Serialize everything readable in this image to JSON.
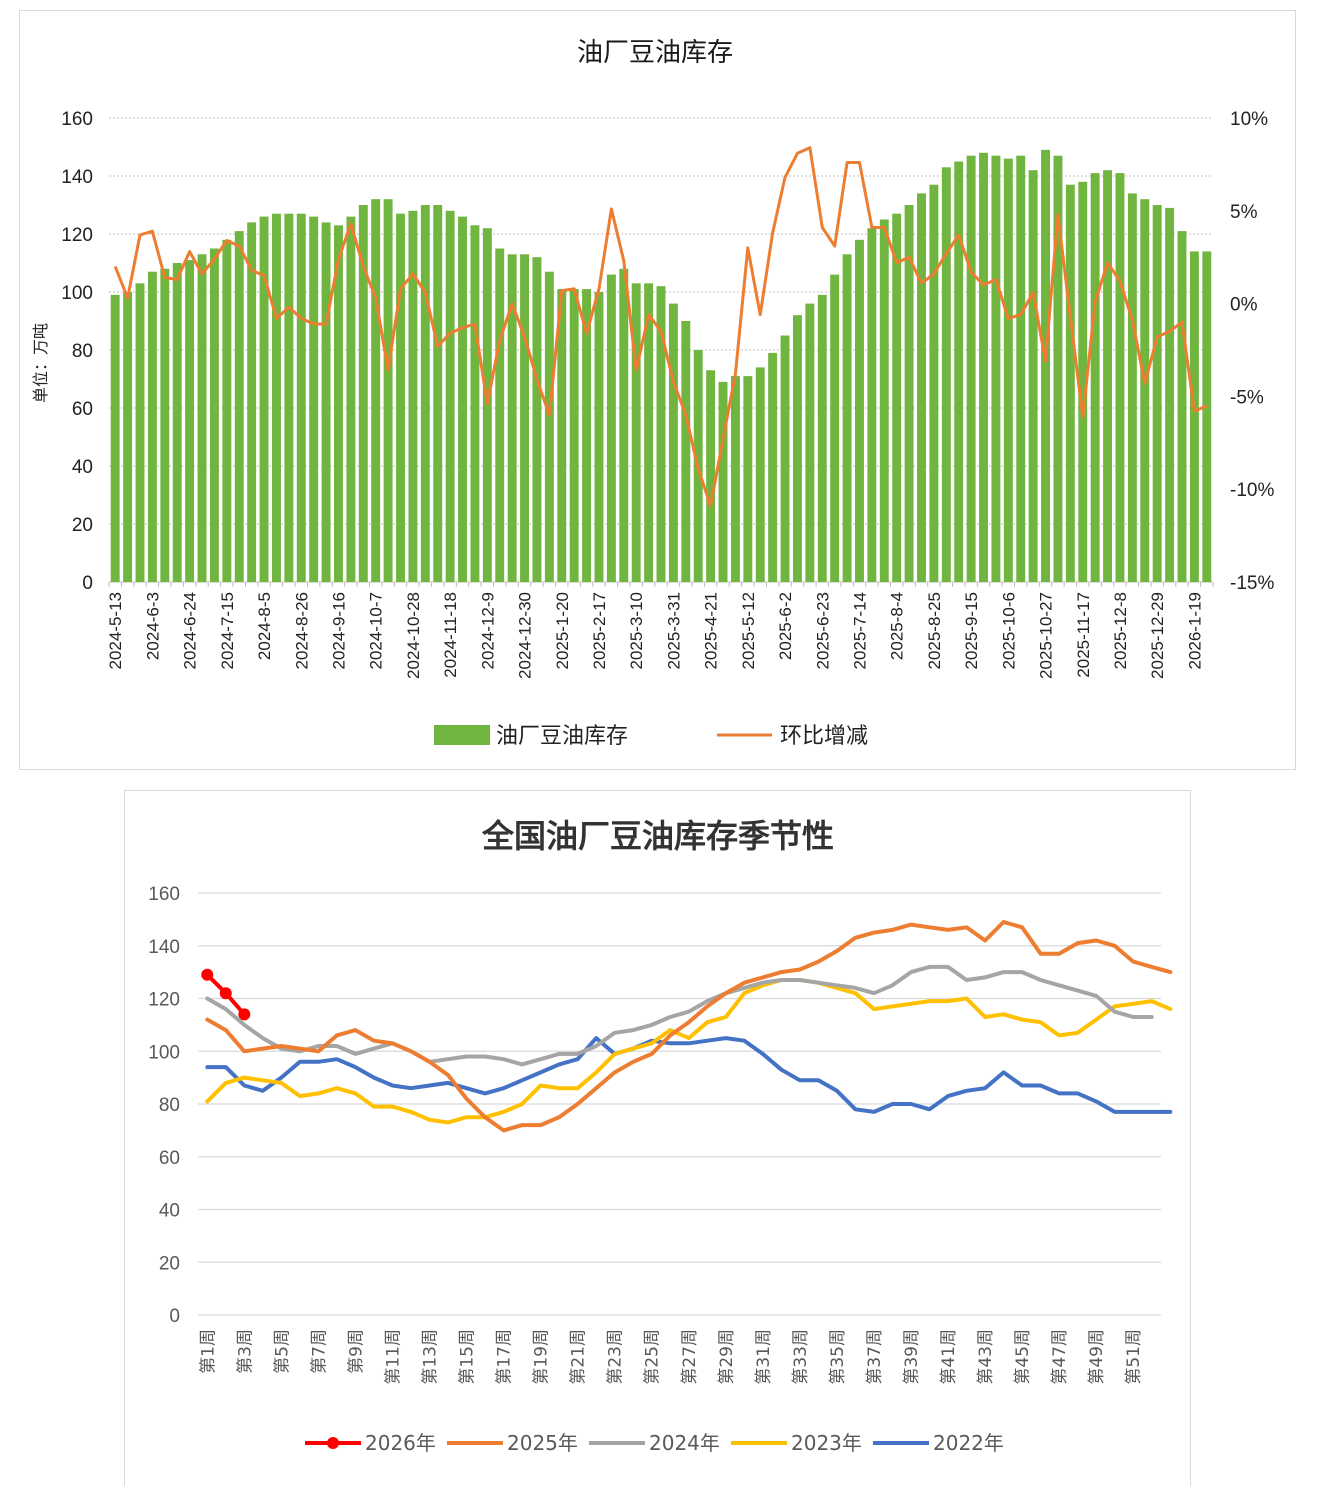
{
  "chart_data": [
    {
      "type": "bar",
      "title": "油厂豆油库存",
      "ylabel": "单位：万吨",
      "ylim": [
        0,
        160
      ],
      "yticks": [
        "0",
        "20",
        "40",
        "60",
        "80",
        "100",
        "120",
        "140",
        "160"
      ],
      "y2lim": [
        -15,
        10
      ],
      "y2ticks": [
        "-15%",
        "-10%",
        "-5%",
        "0%",
        "5%",
        "10%"
      ],
      "grid": true,
      "legend_position": "bottom",
      "start_date": "2024-5-13",
      "frequency": "weekly",
      "xtick_labels": [
        "2024-5-13",
        "2024-6-3",
        "2024-6-24",
        "2024-7-15",
        "2024-8-5",
        "2024-8-26",
        "2024-9-16",
        "2024-10-7",
        "2024-10-28",
        "2024-11-18",
        "2024-12-9",
        "2024-12-30",
        "2025-1-20",
        "2025-2-17",
        "2025-3-10",
        "2025-3-31",
        "2025-4-21",
        "2025-5-12",
        "2025-6-2",
        "2025-6-23",
        "2025-7-14",
        "2025-8-4",
        "2025-8-25",
        "2025-9-15",
        "2025-10-6",
        "2025-10-27",
        "2025-11-17",
        "2025-12-8",
        "2025-12-29",
        "2026-1-19"
      ],
      "series": [
        {
          "name": "油厂豆油库存",
          "type": "bar",
          "axis": "left",
          "color": "#70b53f",
          "values": [
            99,
            100,
            103,
            107,
            108,
            110,
            111,
            113,
            115,
            118,
            121,
            124,
            126,
            127,
            127,
            127,
            126,
            124,
            123,
            126,
            130,
            132,
            132,
            127,
            128,
            130,
            130,
            128,
            126,
            123,
            122,
            115,
            113,
            113,
            112,
            107,
            101,
            101,
            101,
            100,
            106,
            108,
            103,
            103,
            102,
            96,
            90,
            80,
            73,
            69,
            71,
            71,
            74,
            79,
            85,
            92,
            96,
            99,
            106,
            113,
            118,
            122,
            125,
            127,
            130,
            134,
            137,
            143,
            145,
            147,
            148,
            147,
            146,
            147,
            142,
            149,
            147,
            137,
            138,
            141,
            142,
            141,
            134,
            132,
            130,
            129,
            121,
            114,
            114
          ]
        },
        {
          "name": "环比增减",
          "type": "line",
          "axis": "right",
          "unit": "%",
          "color": "#ed7d31",
          "values": [
            2.0,
            0.3,
            3.7,
            3.9,
            1.4,
            1.3,
            2.8,
            1.6,
            2.4,
            3.4,
            3.1,
            1.8,
            1.5,
            -0.8,
            -0.2,
            -0.8,
            -1.1,
            -1.1,
            2.4,
            4.3,
            2.0,
            0.3,
            -3.6,
            0.8,
            1.6,
            0.6,
            -2.3,
            -1.6,
            -1.3,
            -1.1,
            -5.4,
            -2.0,
            0.0,
            -1.8,
            -4.1,
            -6.0,
            0.7,
            0.8,
            -1.6,
            0.8,
            5.1,
            2.3,
            -3.6,
            -0.6,
            -1.5,
            -4.2,
            -6.0,
            -8.9,
            -10.9,
            -7.3,
            -3.8,
            3.0,
            -0.6,
            3.8,
            6.8,
            8.1,
            8.4,
            4.1,
            3.1,
            7.6,
            7.6,
            4.1,
            4.1,
            2.2,
            2.5,
            1.1,
            1.6,
            2.7,
            3.7,
            1.7,
            1.0,
            1.3,
            -0.8,
            -0.6,
            0.6,
            -3.1,
            4.8,
            -0.7,
            -6.1,
            0.1,
            2.2,
            1.2,
            -0.9,
            -4.3,
            -1.8,
            -1.5,
            -1.0,
            -5.8,
            -5.5
          ]
        }
      ]
    },
    {
      "type": "line",
      "title": "全国油厂豆油库存季节性",
      "ylim": [
        0,
        160
      ],
      "yticks": [
        "0",
        "20",
        "40",
        "60",
        "80",
        "100",
        "120",
        "140",
        "160"
      ],
      "grid": true,
      "legend_position": "bottom",
      "xtick_labels": [
        "第1周",
        "第3周",
        "第5周",
        "第7周",
        "第9周",
        "第11周",
        "第13周",
        "第15周",
        "第17周",
        "第19周",
        "第21周",
        "第23周",
        "第25周",
        "第27周",
        "第29周",
        "第31周",
        "第33周",
        "第35周",
        "第37周",
        "第39周",
        "第41周",
        "第43周",
        "第45周",
        "第47周",
        "第49周",
        "第51周"
      ],
      "x_count": 52,
      "series": [
        {
          "name": "2026年",
          "color": "#ff0000",
          "marker": "circle",
          "values": [
            129,
            122,
            114
          ]
        },
        {
          "name": "2025年",
          "color": "#ed7d31",
          "values": [
            112,
            108,
            100,
            101,
            102,
            101,
            100,
            106,
            108,
            104,
            103,
            100,
            96,
            91,
            82,
            75,
            70,
            72,
            72,
            75,
            80,
            86,
            92,
            96,
            99,
            106,
            111,
            117,
            122,
            126,
            128,
            130,
            131,
            134,
            138,
            143,
            145,
            146,
            148,
            147,
            146,
            147,
            142,
            149,
            147,
            137,
            137,
            141,
            142,
            140,
            134,
            132,
            130
          ]
        },
        {
          "name": "2024年",
          "color": "#a5a5a5",
          "values": [
            120,
            116,
            110,
            105,
            101,
            100,
            102,
            102,
            99,
            101,
            103,
            100,
            96,
            97,
            98,
            98,
            97,
            95,
            97,
            99,
            99,
            102,
            107,
            108,
            110,
            113,
            115,
            119,
            122,
            124,
            126,
            127,
            127,
            126,
            125,
            124,
            122,
            125,
            130,
            132,
            132,
            127,
            128,
            130,
            130,
            127,
            125,
            123,
            121,
            115,
            113,
            113
          ]
        },
        {
          "name": "2023年",
          "color": "#ffc000",
          "values": [
            81,
            88,
            90,
            89,
            88,
            83,
            84,
            86,
            84,
            79,
            79,
            77,
            74,
            73,
            75,
            75,
            77,
            80,
            87,
            86,
            86,
            92,
            99,
            101,
            103,
            108,
            105,
            111,
            113,
            122,
            125,
            127,
            127,
            126,
            124,
            122,
            116,
            117,
            118,
            119,
            119,
            120,
            113,
            114,
            112,
            111,
            106,
            107,
            112,
            117,
            118,
            119,
            116
          ]
        },
        {
          "name": "2022年",
          "color": "#4472c4",
          "values": [
            94,
            94,
            87,
            85,
            90,
            96,
            96,
            97,
            94,
            90,
            87,
            86,
            87,
            88,
            86,
            84,
            86,
            89,
            92,
            95,
            97,
            105,
            99,
            101,
            104,
            103,
            103,
            104,
            105,
            104,
            99,
            93,
            89,
            89,
            85,
            78,
            77,
            80,
            80,
            78,
            83,
            85,
            86,
            92,
            87,
            87,
            84,
            84,
            81,
            77,
            77,
            77,
            77
          ]
        }
      ]
    }
  ]
}
